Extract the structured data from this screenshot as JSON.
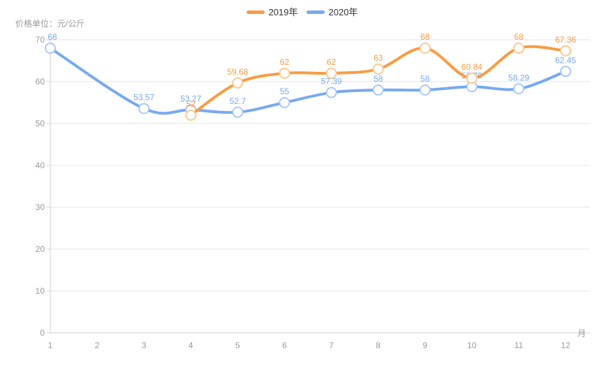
{
  "chart_data": {
    "type": "line",
    "y_axis_name": "价格单位：元/公斤",
    "x_axis_name": "月",
    "categories": [
      "1",
      "2",
      "3",
      "4",
      "5",
      "6",
      "7",
      "8",
      "9",
      "10",
      "11",
      "12"
    ],
    "ylim": [
      0,
      70
    ],
    "y_ticks": [
      0,
      10,
      20,
      30,
      40,
      50,
      60,
      70
    ],
    "grid": true,
    "legend_position": "top-center",
    "smooth": true,
    "series": [
      {
        "name": "2019年",
        "color": "#f89c42",
        "marker_ring_color": "#fbc992",
        "label_color": "#f89c42",
        "values": [
          null,
          null,
          null,
          52,
          59.68,
          62,
          62,
          63,
          68,
          60.84,
          68,
          67.36
        ]
      },
      {
        "name": "2020年",
        "color": "#77a9f0",
        "marker_ring_color": "#aac8f5",
        "label_color": "#77a9f0",
        "values": [
          68,
          null,
          53.57,
          53.27,
          52.7,
          55,
          57.39,
          58,
          58,
          58.79,
          58.29,
          62.45
        ]
      }
    ],
    "colors": {
      "grid_line": "#e6e6e6",
      "axis_line": "#cccccc",
      "tick_label": "#999999",
      "legend_text": "#333333",
      "marker_fill": "#ffffff"
    }
  }
}
